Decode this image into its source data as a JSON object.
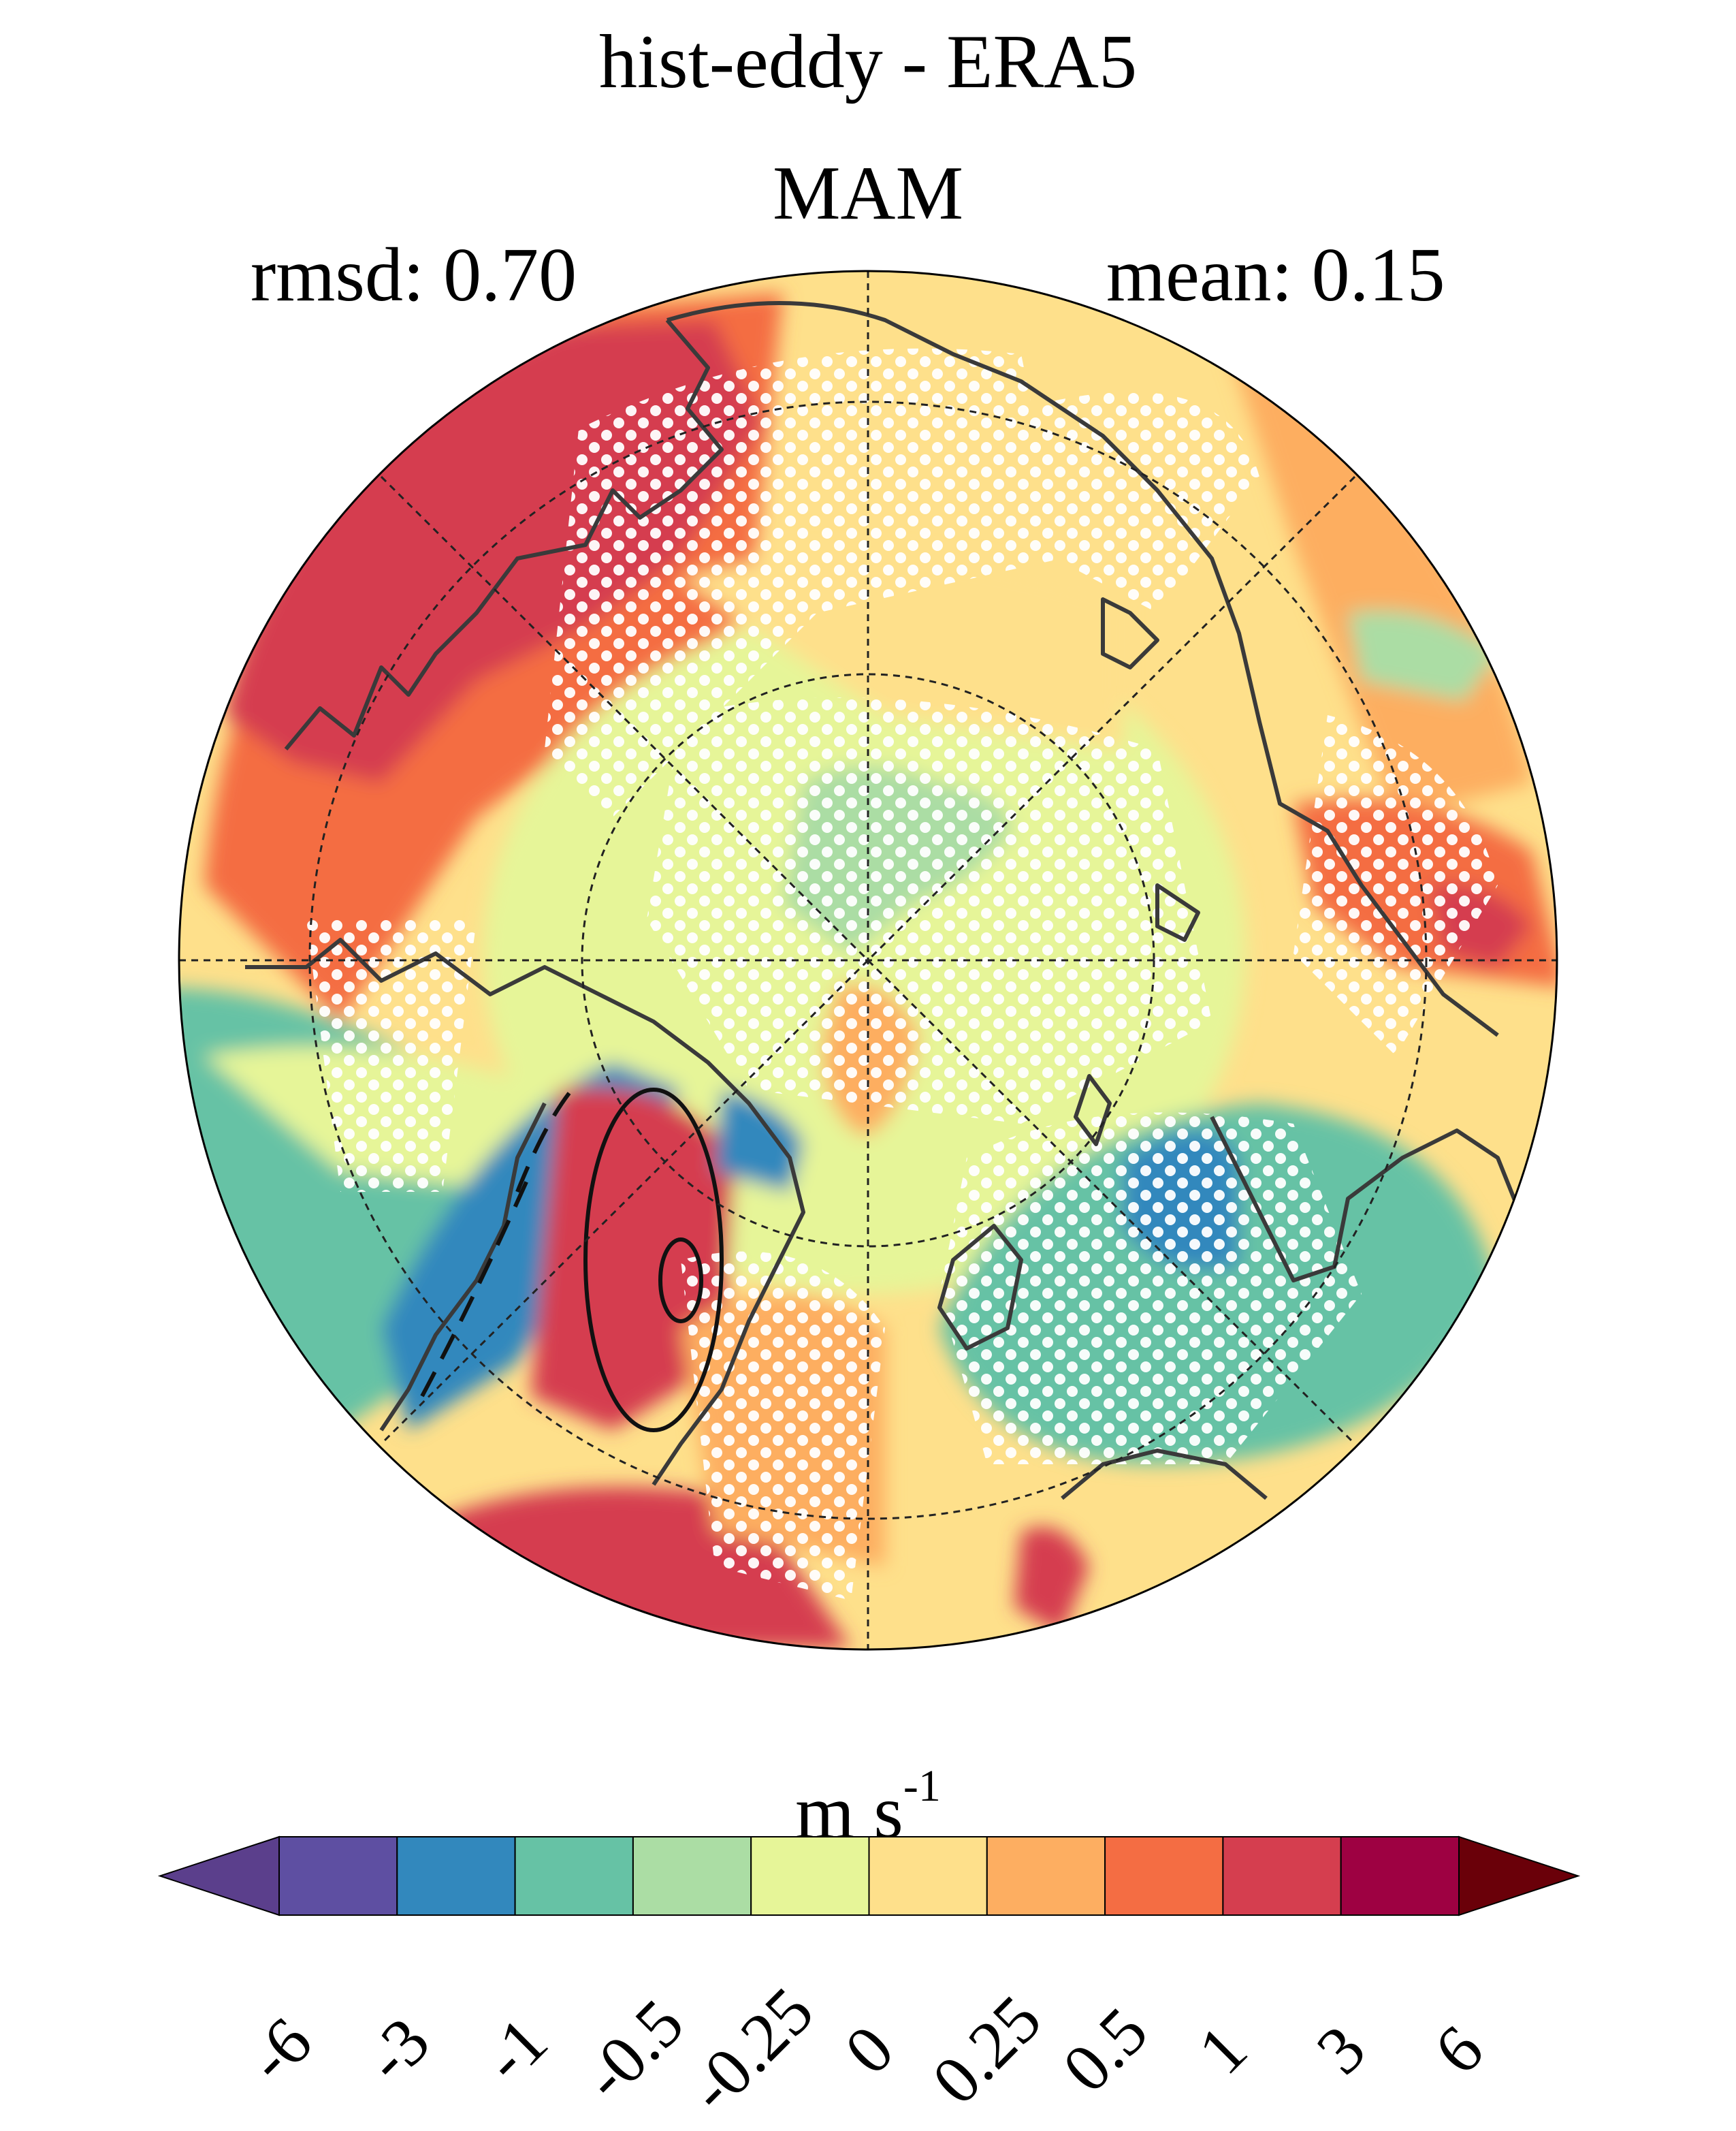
{
  "title": "hist-eddy - ERA5",
  "subtitle": "MAM",
  "stats": {
    "rmsd": "rmsd: 0.70",
    "mean": "mean: 0.15"
  },
  "colorbar": {
    "units_base": "m s",
    "units_exp": "-1",
    "tick_labels": [
      "-6",
      "-3",
      "-1",
      "-0.5",
      "-0.25",
      "0",
      "0.25",
      "0.5",
      "1",
      "3",
      "6"
    ],
    "levels": [
      -6,
      -3,
      -1,
      -0.5,
      -0.25,
      0,
      0.25,
      0.5,
      1,
      3,
      6
    ],
    "colors": [
      "#5e4fa2",
      "#3288bd",
      "#66c2a5",
      "#abdda4",
      "#e6f598",
      "#fee08b",
      "#fdae61",
      "#f46d43",
      "#d53e4f",
      "#9e0142"
    ],
    "extend_low_color": "#5b3f8c",
    "extend_high_color": "#6a0009"
  },
  "map": {
    "projection": "north polar stereographic",
    "graticule": "dashed",
    "stippling": "white dots",
    "coastline_color": "#3a3a3a"
  }
}
